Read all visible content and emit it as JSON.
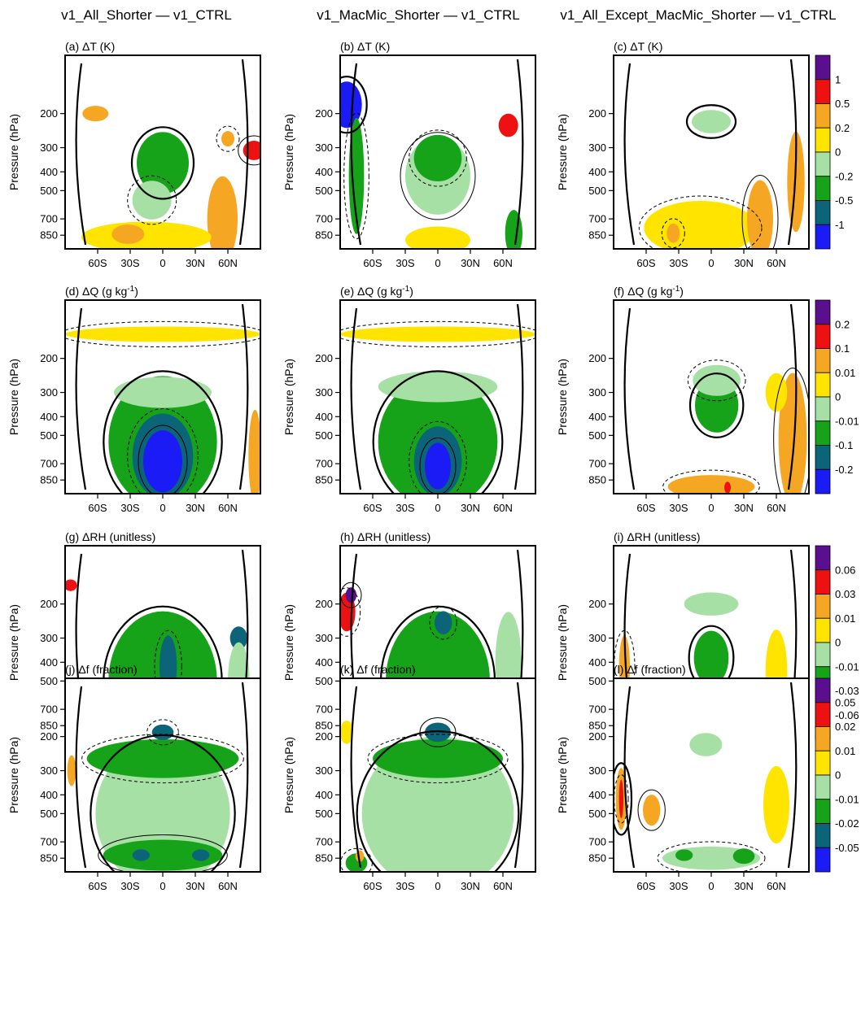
{
  "chart_data": {
    "type": "heatmap",
    "column_titles": [
      "v1_All_Shorter — v1_CTRL",
      "v1_MacMic_Shorter — v1_CTRL",
      "v1_All_Except_MacMic_Shorter — v1_CTRL"
    ],
    "ylabel": "Pressure (hPa)",
    "y_ticks": [
      "200",
      "300",
      "400",
      "500",
      "700",
      "850"
    ],
    "y_tick_values": [
      200,
      300,
      400,
      500,
      700,
      850
    ],
    "ylim": [
      1000,
      100
    ],
    "y_scale": "log",
    "x_ticks": [
      "60S",
      "30S",
      "0",
      "30N",
      "60N"
    ],
    "x_tick_values": [
      -60,
      -30,
      0,
      30,
      60
    ],
    "xlim": [
      -90,
      90
    ],
    "colorbar_placement": "right",
    "rows": [
      {
        "colorbar_labels": [
          "1",
          "0.5",
          "0.2",
          "0",
          "-0.2",
          "-0.5",
          "-1"
        ],
        "colors": [
          "#5a0f8f",
          "#ee1111",
          "#f5a623",
          "#ffe400",
          "#a7e0a5",
          "#16a31a",
          "#0b6478",
          "#1b1bf5"
        ],
        "panels": [
          {
            "label": "(a)",
            "var": "ΔT",
            "unit": "(K)",
            "unit_sup": "",
            "unit_post": "",
            "blobs": [
              {
                "x": 0,
                "p": 360,
                "rx": 24,
                "ry": 0.16,
                "c": 5
              },
              {
                "x": -10,
                "p": 560,
                "rx": 18,
                "ry": 0.1,
                "c": 4
              },
              {
                "x": 84,
                "p": 310,
                "rx": 10,
                "ry": 0.05,
                "c": 1
              },
              {
                "x": 60,
                "p": 270,
                "rx": 6,
                "ry": 0.04,
                "c": 2
              },
              {
                "x": 55,
                "p": 700,
                "rx": 14,
                "ry": 0.22,
                "c": 2
              },
              {
                "x": -15,
                "p": 870,
                "rx": 60,
                "ry": 0.08,
                "c": 3
              },
              {
                "x": -32,
                "p": 840,
                "rx": 15,
                "ry": 0.05,
                "c": 2
              },
              {
                "x": -62,
                "p": 200,
                "rx": 12,
                "ry": 0.04,
                "c": 2
              }
            ]
          },
          {
            "label": "(b)",
            "var": "ΔT",
            "unit": "(K)",
            "unit_sup": "",
            "unit_post": "",
            "blobs": [
              {
                "x": -84,
                "p": 180,
                "rx": 14,
                "ry": 0.12,
                "c": 7
              },
              {
                "x": -75,
                "p": 420,
                "rx": 7,
                "ry": 0.3,
                "c": 5
              },
              {
                "x": 0,
                "p": 420,
                "rx": 30,
                "ry": 0.2,
                "c": 4
              },
              {
                "x": 0,
                "p": 340,
                "rx": 22,
                "ry": 0.12,
                "c": 5
              },
              {
                "x": 65,
                "p": 230,
                "rx": 9,
                "ry": 0.06,
                "c": 1
              },
              {
                "x": 0,
                "p": 900,
                "rx": 30,
                "ry": 0.07,
                "c": 3
              },
              {
                "x": 70,
                "p": 830,
                "rx": 8,
                "ry": 0.12,
                "c": 5
              }
            ]
          },
          {
            "label": "(c)",
            "var": "ΔT",
            "unit": "(K)",
            "unit_sup": "",
            "unit_post": "",
            "blobs": [
              {
                "x": 0,
                "p": 220,
                "rx": 18,
                "ry": 0.06,
                "c": 4
              },
              {
                "x": -10,
                "p": 780,
                "rx": 52,
                "ry": 0.14,
                "c": 3
              },
              {
                "x": 45,
                "p": 700,
                "rx": 12,
                "ry": 0.2,
                "c": 2
              },
              {
                "x": -35,
                "p": 830,
                "rx": 6,
                "ry": 0.05,
                "c": 2
              },
              {
                "x": 78,
                "p": 450,
                "rx": 8,
                "ry": 0.26,
                "c": 2
              }
            ]
          }
        ]
      },
      {
        "colorbar_labels": [
          "0.2",
          "0.1",
          "0.01",
          "0",
          "-0.01",
          "-0.1",
          "-0.2"
        ],
        "colors": [
          "#5a0f8f",
          "#ee1111",
          "#f5a623",
          "#ffe400",
          "#a7e0a5",
          "#16a31a",
          "#0b6478",
          "#1b1bf5"
        ],
        "panels": [
          {
            "label": "(d)",
            "var": "ΔQ",
            "unit": "(g kg",
            "unit_sup": "-1",
            "unit_post": ")",
            "blobs": [
              {
                "x": 0,
                "p": 540,
                "rx": 50,
                "ry": 0.34,
                "c": 5
              },
              {
                "x": 0,
                "p": 640,
                "rx": 28,
                "ry": 0.22,
                "c": 6
              },
              {
                "x": 0,
                "p": 680,
                "rx": 18,
                "ry": 0.16,
                "c": 7
              },
              {
                "x": 0,
                "p": 150,
                "rx": 90,
                "ry": 0.04,
                "c": 3
              },
              {
                "x": 85,
                "p": 640,
                "rx": 6,
                "ry": 0.24,
                "c": 2
              },
              {
                "x": 0,
                "p": 300,
                "rx": 45,
                "ry": 0.08,
                "c": 4
              }
            ]
          },
          {
            "label": "(e)",
            "var": "ΔQ",
            "unit": "(g kg",
            "unit_sup": "-1",
            "unit_post": ")",
            "blobs": [
              {
                "x": 0,
                "p": 540,
                "rx": 55,
                "ry": 0.34,
                "c": 5
              },
              {
                "x": 0,
                "p": 680,
                "rx": 22,
                "ry": 0.18,
                "c": 6
              },
              {
                "x": 0,
                "p": 720,
                "rx": 12,
                "ry": 0.12,
                "c": 7
              },
              {
                "x": 0,
                "p": 150,
                "rx": 90,
                "ry": 0.04,
                "c": 3
              },
              {
                "x": 0,
                "p": 280,
                "rx": 55,
                "ry": 0.08,
                "c": 4
              }
            ]
          },
          {
            "label": "(f)",
            "var": "ΔQ",
            "unit": "(g kg",
            "unit_sup": "-1",
            "unit_post": ")",
            "blobs": [
              {
                "x": 5,
                "p": 350,
                "rx": 20,
                "ry": 0.14,
                "c": 5
              },
              {
                "x": 5,
                "p": 260,
                "rx": 22,
                "ry": 0.08,
                "c": 4
              },
              {
                "x": 75,
                "p": 520,
                "rx": 13,
                "ry": 0.34,
                "c": 2
              },
              {
                "x": 0,
                "p": 920,
                "rx": 40,
                "ry": 0.06,
                "c": 2
              },
              {
                "x": 60,
                "p": 300,
                "rx": 10,
                "ry": 0.1,
                "c": 3
              },
              {
                "x": 15,
                "p": 930,
                "rx": 3,
                "ry": 0.03,
                "c": 1
              }
            ]
          }
        ]
      },
      {
        "colorbar_labels": [
          "0.06",
          "0.03",
          "0.01",
          "0",
          "-0.01",
          "-0.03",
          "-0.06"
        ],
        "colors": [
          "#5a0f8f",
          "#ee1111",
          "#f5a623",
          "#ffe400",
          "#a7e0a5",
          "#16a31a",
          "#0b6478",
          "#1b1bf5"
        ],
        "panels": [
          {
            "label": "(g)",
            "var": "ΔRH",
            "unit": "(unitless)",
            "unit_sup": "",
            "unit_post": "",
            "blobs": [
              {
                "x": 0,
                "p": 500,
                "rx": 50,
                "ry": 0.36,
                "c": 5
              },
              {
                "x": 5,
                "p": 420,
                "rx": 8,
                "ry": 0.16,
                "c": 6
              },
              {
                "x": -15,
                "p": 800,
                "rx": 14,
                "ry": 0.04,
                "c": 6
              },
              {
                "x": 25,
                "p": 800,
                "rx": 12,
                "ry": 0.04,
                "c": 6
              },
              {
                "x": 70,
                "p": 300,
                "rx": 8,
                "ry": 0.06,
                "c": 6
              },
              {
                "x": -85,
                "p": 160,
                "rx": 6,
                "ry": 0.03,
                "c": 1
              },
              {
                "x": 70,
                "p": 500,
                "rx": 10,
                "ry": 0.2,
                "c": 4
              }
            ]
          },
          {
            "label": "(h)",
            "var": "ΔRH",
            "unit": "(unitless)",
            "unit_sup": "",
            "unit_post": "",
            "blobs": [
              {
                "x": 0,
                "p": 500,
                "rx": 48,
                "ry": 0.36,
                "c": 5
              },
              {
                "x": -84,
                "p": 220,
                "rx": 8,
                "ry": 0.1,
                "c": 1
              },
              {
                "x": -80,
                "p": 180,
                "rx": 5,
                "ry": 0.04,
                "c": 0
              },
              {
                "x": 5,
                "p": 250,
                "rx": 8,
                "ry": 0.06,
                "c": 6
              },
              {
                "x": 65,
                "p": 400,
                "rx": 12,
                "ry": 0.26,
                "c": 4
              }
            ]
          },
          {
            "label": "(i)",
            "var": "ΔRH",
            "unit": "(unitless)",
            "unit_sup": "",
            "unit_post": "",
            "blobs": [
              {
                "x": 0,
                "p": 380,
                "rx": 16,
                "ry": 0.14,
                "c": 5
              },
              {
                "x": -15,
                "p": 820,
                "rx": 10,
                "ry": 0.04,
                "c": 5
              },
              {
                "x": 30,
                "p": 820,
                "rx": 10,
                "ry": 0.04,
                "c": 5
              },
              {
                "x": -80,
                "p": 420,
                "rx": 5,
                "ry": 0.16,
                "c": 2
              },
              {
                "x": 60,
                "p": 450,
                "rx": 10,
                "ry": 0.22,
                "c": 3
              },
              {
                "x": 0,
                "p": 200,
                "rx": 25,
                "ry": 0.06,
                "c": 4
              }
            ]
          }
        ]
      },
      {
        "colorbar_labels": [
          "0.05",
          "0.02",
          "0.01",
          "0",
          "-0.01",
          "-0.02",
          "-0.05"
        ],
        "colors": [
          "#5a0f8f",
          "#ee1111",
          "#f5a623",
          "#ffe400",
          "#a7e0a5",
          "#16a31a",
          "#0b6478",
          "#1b1bf5"
        ],
        "panels": [
          {
            "label": "(j)",
            "var": "Δf",
            "unit": "(fraction)",
            "unit_sup": "",
            "unit_post": "",
            "blobs": [
              {
                "x": 0,
                "p": 500,
                "rx": 62,
                "ry": 0.38,
                "c": 4
              },
              {
                "x": 0,
                "p": 260,
                "rx": 70,
                "ry": 0.1,
                "c": 5
              },
              {
                "x": 0,
                "p": 820,
                "rx": 55,
                "ry": 0.08,
                "c": 5
              },
              {
                "x": 0,
                "p": 190,
                "rx": 10,
                "ry": 0.04,
                "c": 6
              },
              {
                "x": -20,
                "p": 820,
                "rx": 8,
                "ry": 0.03,
                "c": 6
              },
              {
                "x": 35,
                "p": 820,
                "rx": 8,
                "ry": 0.03,
                "c": 6
              },
              {
                "x": -84,
                "p": 300,
                "rx": 4,
                "ry": 0.08,
                "c": 2
              }
            ]
          },
          {
            "label": "(k)",
            "var": "Δf",
            "unit": "(fraction)",
            "unit_sup": "",
            "unit_post": "",
            "blobs": [
              {
                "x": 0,
                "p": 500,
                "rx": 70,
                "ry": 0.4,
                "c": 4
              },
              {
                "x": 0,
                "p": 260,
                "rx": 60,
                "ry": 0.1,
                "c": 5
              },
              {
                "x": 0,
                "p": 190,
                "rx": 12,
                "ry": 0.05,
                "c": 6
              },
              {
                "x": -75,
                "p": 900,
                "rx": 10,
                "ry": 0.05,
                "c": 5
              },
              {
                "x": -72,
                "p": 830,
                "rx": 4,
                "ry": 0.03,
                "c": 2
              },
              {
                "x": -84,
                "p": 190,
                "rx": 6,
                "ry": 0.06,
                "c": 3
              }
            ]
          },
          {
            "label": "(l)",
            "var": "Δf",
            "unit": "(fraction)",
            "unit_sup": "",
            "unit_post": "",
            "blobs": [
              {
                "x": -83,
                "p": 420,
                "rx": 5,
                "ry": 0.16,
                "c": 2
              },
              {
                "x": -83,
                "p": 420,
                "rx": 2,
                "ry": 0.1,
                "c": 1
              },
              {
                "x": -55,
                "p": 480,
                "rx": 8,
                "ry": 0.08,
                "c": 2
              },
              {
                "x": 0,
                "p": 850,
                "rx": 45,
                "ry": 0.06,
                "c": 4
              },
              {
                "x": -25,
                "p": 820,
                "rx": 8,
                "ry": 0.03,
                "c": 5
              },
              {
                "x": 30,
                "p": 830,
                "rx": 10,
                "ry": 0.04,
                "c": 5
              },
              {
                "x": 60,
                "p": 450,
                "rx": 12,
                "ry": 0.2,
                "c": 3
              },
              {
                "x": -5,
                "p": 220,
                "rx": 15,
                "ry": 0.06,
                "c": 4
              }
            ]
          }
        ]
      }
    ]
  }
}
